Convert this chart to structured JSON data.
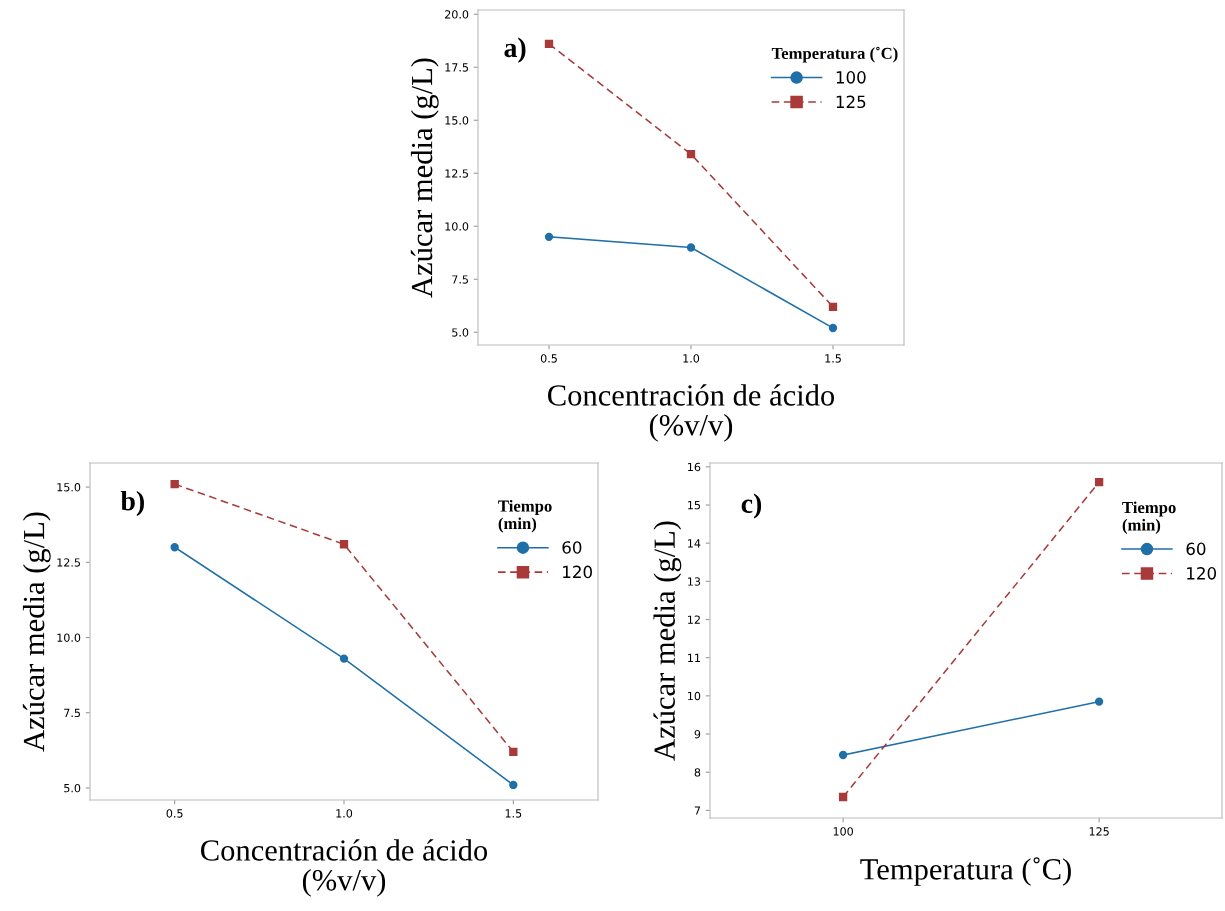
{
  "chart_data": [
    {
      "type": "line",
      "xlabel": "Concentración de ácido\n(%v/v)",
      "ylabel": "Azúcar media (g/L)",
      "legend_title": "Temperatura (˚C)",
      "annotations": [
        "a)"
      ],
      "x": [
        0.5,
        1.0,
        1.5
      ],
      "xlim": [
        0.25,
        1.75
      ],
      "xticks": [
        {
          "value": 0.5,
          "label": "0.5"
        },
        {
          "value": 1.0,
          "label": "1.0"
        },
        {
          "value": 1.5,
          "label": "1.5"
        }
      ],
      "ylim": [
        4.4,
        20.2
      ],
      "yticks": [
        {
          "value": 5,
          "label": "5.0"
        },
        {
          "value": 7.5,
          "label": "7.5"
        },
        {
          "value": 10,
          "label": "10.0"
        },
        {
          "value": 12.5,
          "label": "12.5"
        },
        {
          "value": 15,
          "label": "15.0"
        },
        {
          "value": 17.5,
          "label": "17.5"
        },
        {
          "value": 20,
          "label": "20.0"
        }
      ],
      "grid": false,
      "legend": "top right",
      "series": [
        {
          "name": "100",
          "color": "#1f6fa8",
          "marker": "circle",
          "line_style": "solid",
          "values": [
            9.5,
            9.0,
            5.2
          ]
        },
        {
          "name": "125",
          "color": "#a83a3a",
          "marker": "square",
          "line_style": "dashed",
          "values": [
            18.6,
            13.4,
            6.2
          ]
        }
      ]
    },
    {
      "type": "line",
      "xlabel": "Concentración de ácido\n(%v/v)",
      "ylabel": "Azúcar media (g/L)",
      "legend_title": "Tiempo\n(min)",
      "annotations": [
        "b)"
      ],
      "x": [
        0.5,
        1.0,
        1.5
      ],
      "xlim": [
        0.25,
        1.75
      ],
      "xticks": [
        {
          "value": 0.5,
          "label": "0.5"
        },
        {
          "value": 1.0,
          "label": "1.0"
        },
        {
          "value": 1.5,
          "label": "1.5"
        }
      ],
      "ylim": [
        4.6,
        15.8
      ],
      "yticks": [
        {
          "value": 5,
          "label": "5.0"
        },
        {
          "value": 7.5,
          "label": "7.5"
        },
        {
          "value": 10,
          "label": "10.0"
        },
        {
          "value": 12.5,
          "label": "12.5"
        },
        {
          "value": 15,
          "label": "15.0"
        }
      ],
      "grid": false,
      "legend": "top right",
      "series": [
        {
          "name": "60",
          "color": "#1f6fa8",
          "marker": "circle",
          "line_style": "solid",
          "values": [
            13.0,
            9.3,
            5.1
          ]
        },
        {
          "name": "120",
          "color": "#a83a3a",
          "marker": "square",
          "line_style": "dashed",
          "values": [
            15.1,
            13.1,
            6.2
          ]
        }
      ]
    },
    {
      "type": "line",
      "xlabel": "Temperatura (˚C)",
      "ylabel": "Azúcar media (g/L)",
      "legend_title": "Tiempo\n(min)",
      "annotations": [
        "c)"
      ],
      "x": [
        100,
        125
      ],
      "xlim": [
        87,
        137
      ],
      "xticks": [
        100,
        125
      ],
      "ylim": [
        6.8,
        16.1
      ],
      "yticks": [
        7,
        8,
        9,
        10,
        11,
        12,
        13,
        14,
        15,
        16
      ],
      "grid": false,
      "legend": "top right",
      "series": [
        {
          "name": "60",
          "color": "#1f6fa8",
          "marker": "circle",
          "line_style": "solid",
          "values": [
            8.45,
            9.85
          ]
        },
        {
          "name": "120",
          "color": "#a83a3a",
          "marker": "square",
          "line_style": "dashed",
          "values": [
            7.35,
            15.6
          ]
        }
      ]
    }
  ]
}
